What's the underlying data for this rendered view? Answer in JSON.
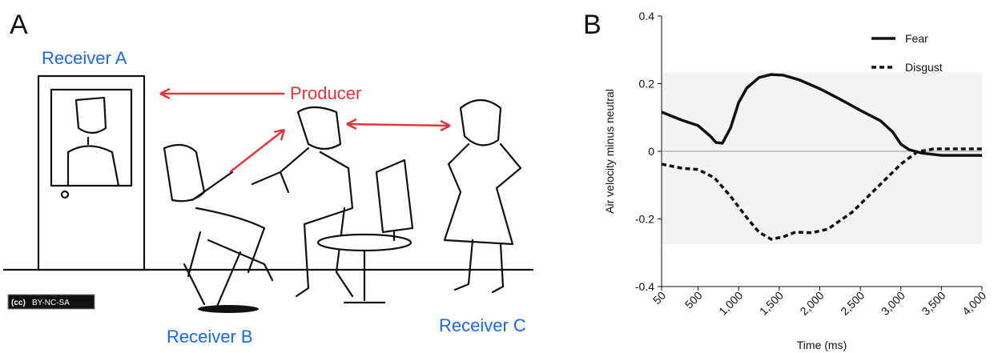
{
  "illustration": {
    "panel_label": "A",
    "receiver_a": "Receiver A",
    "producer": "Producer",
    "receiver_b": "Receiver B",
    "receiver_c": "Receiver C",
    "cc_icon": "(cc)",
    "license": "BY-NC-SA"
  },
  "chart_data": {
    "type": "line",
    "panel_label": "B",
    "xlabel": "Time (ms)",
    "ylabel": "Air velocity minus neutral",
    "xlim": [
      50,
      4000
    ],
    "ylim": [
      -0.4,
      0.4
    ],
    "xticks": [
      50,
      500,
      {
        "value": 1000,
        "label": "1,000"
      },
      {
        "value": 1500,
        "label": "1,500"
      },
      {
        "value": 2000,
        "label": "2,000"
      },
      {
        "value": 2500,
        "label": "2,500"
      },
      {
        "value": 3000,
        "label": "3,000"
      },
      {
        "value": 3500,
        "label": "3,500"
      },
      {
        "value": 4000,
        "label": "4,000"
      }
    ],
    "yticks": [
      -0.4,
      -0.2,
      0,
      0.2,
      0.4
    ],
    "legend": "upper right",
    "series": [
      {
        "name": "Fear",
        "color": "#111111",
        "linestyle": "solid",
        "x": [
          50,
          300,
          500,
          650,
          720,
          800,
          900,
          1000,
          1100,
          1250,
          1400,
          1550,
          1750,
          2000,
          2250,
          2500,
          2750,
          2900,
          3000,
          3100,
          3250,
          3500,
          4000
        ],
        "values": [
          0.116,
          0.092,
          0.076,
          0.045,
          0.026,
          0.024,
          0.069,
          0.144,
          0.187,
          0.218,
          0.227,
          0.225,
          0.211,
          0.185,
          0.154,
          0.121,
          0.09,
          0.057,
          0.021,
          0.005,
          -0.005,
          -0.012,
          -0.012
        ]
      },
      {
        "name": "Disgust",
        "color": "#111111",
        "linestyle": "dashed",
        "x": [
          50,
          300,
          500,
          700,
          900,
          1100,
          1250,
          1400,
          1550,
          1700,
          1900,
          2100,
          2400,
          2700,
          3000,
          3200,
          3400,
          4000
        ],
        "values": [
          -0.038,
          -0.05,
          -0.054,
          -0.078,
          -0.133,
          -0.196,
          -0.239,
          -0.26,
          -0.253,
          -0.239,
          -0.241,
          -0.23,
          -0.18,
          -0.109,
          -0.038,
          -0.002,
          0.007,
          0.007
        ]
      }
    ]
  }
}
